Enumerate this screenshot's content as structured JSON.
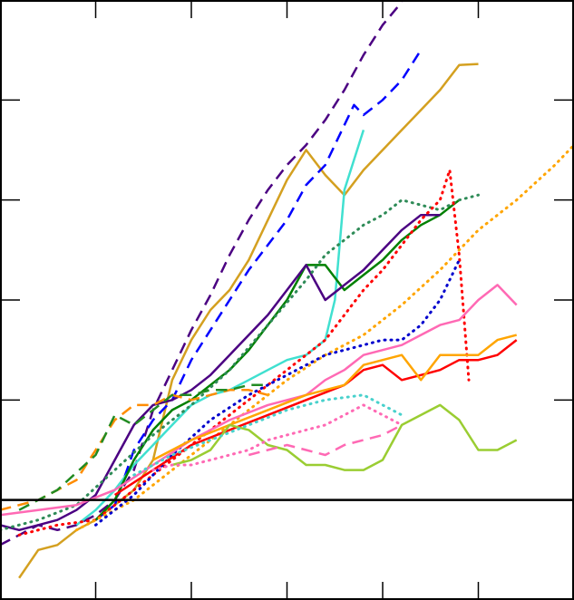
{
  "chart_data": {
    "type": "line",
    "title": "",
    "xlabel": "",
    "ylabel": "",
    "xlim": [
      0,
      6
    ],
    "ylim": [
      -1,
      5
    ],
    "grid": false,
    "legend": "none",
    "x_ticks": [
      1,
      2,
      3,
      4,
      5
    ],
    "y_ticks": [
      -1,
      0,
      1,
      2,
      3,
      4
    ],
    "reference_line_y": 0,
    "series": [
      {
        "color": "#D4A020",
        "dash": "solid",
        "width": 2.5,
        "x": [
          0.2,
          0.4,
          0.6,
          0.8,
          1.0,
          1.2,
          1.4,
          1.6,
          1.8,
          2.0,
          2.2,
          2.4,
          2.6,
          2.8,
          3.0,
          3.2,
          3.4,
          3.6,
          3.8,
          4.0,
          4.2,
          4.4,
          4.6,
          4.8,
          5.0
        ],
        "y": [
          -0.78,
          -0.5,
          -0.45,
          -0.3,
          -0.2,
          -0.05,
          0.1,
          0.4,
          1.2,
          1.6,
          1.9,
          2.1,
          2.4,
          2.8,
          3.2,
          3.5,
          3.25,
          3.05,
          3.3,
          3.5,
          3.7,
          3.9,
          4.1,
          4.35,
          4.36
        ]
      },
      {
        "color": "#4B0082",
        "dash": "dash",
        "width": 2.5,
        "x": [
          0.0,
          0.2,
          0.4,
          0.6,
          0.8,
          1.0,
          1.2,
          1.4,
          1.6,
          1.8,
          2.0,
          2.2,
          2.4,
          2.6,
          2.8,
          3.0,
          3.2,
          3.4,
          3.6,
          3.8,
          4.0,
          4.2
        ],
        "y": [
          -0.45,
          -0.35,
          -0.25,
          -0.3,
          -0.25,
          -0.15,
          0.0,
          0.3,
          0.9,
          1.3,
          1.7,
          2.05,
          2.45,
          2.8,
          3.1,
          3.35,
          3.55,
          3.8,
          4.1,
          4.45,
          4.75,
          4.98
        ]
      },
      {
        "color": "#0000FF",
        "dash": "dash",
        "width": 2.5,
        "x": [
          1.0,
          1.2,
          1.4,
          1.6,
          1.8,
          2.0,
          2.2,
          2.4,
          2.6,
          2.8,
          3.0,
          3.2,
          3.4,
          3.6,
          3.7,
          3.8,
          4.0,
          4.2,
          4.4
        ],
        "y": [
          -0.2,
          -0.05,
          0.5,
          0.8,
          1.0,
          1.4,
          1.7,
          2.0,
          2.3,
          2.55,
          2.8,
          3.15,
          3.35,
          3.75,
          3.95,
          3.85,
          4.0,
          4.2,
          4.5
        ]
      },
      {
        "color": "#40E0D0",
        "dash": "solid",
        "width": 2.5,
        "x": [
          0.8,
          1.0,
          1.2,
          1.4,
          1.6,
          1.8,
          2.0,
          2.2,
          2.4,
          2.6,
          2.8,
          3.0,
          3.2,
          3.4,
          3.5,
          3.6,
          3.8
        ],
        "y": [
          -0.25,
          -0.1,
          0.1,
          0.35,
          0.55,
          0.75,
          0.95,
          1.05,
          1.1,
          1.2,
          1.3,
          1.4,
          1.45,
          1.6,
          2.0,
          3.1,
          3.7
        ]
      },
      {
        "color": "#008000",
        "dash": "solid",
        "width": 2.5,
        "x": [
          1.0,
          1.2,
          1.4,
          1.6,
          1.8,
          2.0,
          2.2,
          2.4,
          2.6,
          2.8,
          3.0,
          3.2,
          3.4,
          3.6,
          3.8,
          4.0,
          4.2,
          4.4,
          4.6,
          4.8
        ],
        "y": [
          -0.2,
          0.0,
          0.4,
          0.7,
          0.9,
          1.0,
          1.15,
          1.3,
          1.5,
          1.75,
          2.0,
          2.35,
          2.35,
          2.1,
          2.25,
          2.4,
          2.6,
          2.75,
          2.85,
          3.0
        ]
      },
      {
        "color": "#4B0082",
        "dash": "solid",
        "width": 2.5,
        "x": [
          0.0,
          0.2,
          0.4,
          0.6,
          0.8,
          1.0,
          1.2,
          1.4,
          1.6,
          1.8,
          2.0,
          2.2,
          2.4,
          2.6,
          2.8,
          3.0,
          3.2,
          3.4,
          3.6,
          3.8,
          4.0,
          4.2,
          4.4,
          4.6
        ],
        "y": [
          -0.25,
          -0.3,
          -0.25,
          -0.2,
          -0.1,
          0.05,
          0.4,
          0.75,
          0.95,
          1.0,
          1.1,
          1.25,
          1.45,
          1.65,
          1.85,
          2.1,
          2.35,
          2.0,
          2.15,
          2.3,
          2.5,
          2.7,
          2.85,
          2.85
        ]
      },
      {
        "color": "#2E8B57",
        "dash": "dot",
        "width": 3,
        "x": [
          0.0,
          0.4,
          0.8,
          1.2,
          1.6,
          2.0,
          2.4,
          2.8,
          3.2,
          3.4,
          3.6,
          3.8,
          4.0,
          4.2,
          4.4,
          4.6,
          4.8,
          5.0
        ],
        "y": [
          -0.3,
          -0.2,
          -0.05,
          0.3,
          0.65,
          0.95,
          1.3,
          1.75,
          2.2,
          2.45,
          2.6,
          2.75,
          2.85,
          3.0,
          2.95,
          2.9,
          3.0,
          3.05
        ]
      },
      {
        "color": "#FF0000",
        "dash": "dot",
        "width": 3,
        "x": [
          0.2,
          0.6,
          1.0,
          1.4,
          1.8,
          2.2,
          2.6,
          3.0,
          3.4,
          3.6,
          3.8,
          4.0,
          4.2,
          4.4,
          4.6,
          4.7,
          4.8,
          4.9
        ],
        "y": [
          -0.35,
          -0.25,
          -0.2,
          0.1,
          0.4,
          0.7,
          1.0,
          1.3,
          1.6,
          1.85,
          2.1,
          2.3,
          2.55,
          2.8,
          3.0,
          3.3,
          2.45,
          1.2
        ]
      },
      {
        "color": "#FF8C00",
        "dash": "dash",
        "width": 2.5,
        "x": [
          0.0,
          0.4,
          0.8,
          1.0,
          1.2,
          1.4,
          1.6,
          1.8,
          2.0,
          2.2,
          2.4,
          2.6,
          2.8
        ],
        "y": [
          -0.1,
          0.0,
          0.2,
          0.5,
          0.8,
          0.95,
          0.95,
          1.05,
          1.0,
          1.05,
          1.1,
          1.1,
          1.05
        ]
      },
      {
        "color": "#228B22",
        "dash": "dash",
        "width": 2.5,
        "x": [
          0.2,
          0.6,
          1.0,
          1.2,
          1.4,
          1.6,
          1.8,
          2.0,
          2.2,
          2.4,
          2.6,
          2.8
        ],
        "y": [
          -0.1,
          0.1,
          0.45,
          0.85,
          0.75,
          0.9,
          1.05,
          1.05,
          1.1,
          1.1,
          1.15,
          1.15
        ]
      },
      {
        "color": "#FFA500",
        "dash": "dot",
        "width": 3,
        "x": [
          0.8,
          1.0,
          1.4,
          1.8,
          2.2,
          2.6,
          3.0,
          3.4,
          3.8,
          4.2,
          4.6,
          5.0,
          5.4,
          5.8,
          6.0
        ],
        "y": [
          -0.3,
          -0.2,
          0.0,
          0.3,
          0.6,
          0.9,
          1.2,
          1.45,
          1.65,
          1.95,
          2.3,
          2.7,
          3.0,
          3.35,
          3.55
        ]
      },
      {
        "color": "#0000CD",
        "dash": "dot",
        "width": 3,
        "x": [
          1.0,
          1.4,
          1.8,
          2.2,
          2.6,
          3.0,
          3.4,
          3.6,
          3.8,
          4.0,
          4.2,
          4.4,
          4.6,
          4.8
        ],
        "y": [
          -0.25,
          0.05,
          0.45,
          0.8,
          1.05,
          1.25,
          1.45,
          1.5,
          1.55,
          1.6,
          1.6,
          1.75,
          2.0,
          2.4
        ]
      },
      {
        "color": "#FF69B4",
        "dash": "solid",
        "width": 2.5,
        "x": [
          0.0,
          0.4,
          0.8,
          1.2,
          1.6,
          2.0,
          2.4,
          2.8,
          3.2,
          3.4,
          3.6,
          3.8,
          4.0,
          4.2,
          4.4,
          4.6,
          4.8,
          5.0,
          5.2,
          5.4
        ],
        "y": [
          -0.15,
          -0.1,
          -0.05,
          0.1,
          0.35,
          0.6,
          0.8,
          0.95,
          1.05,
          1.2,
          1.3,
          1.45,
          1.5,
          1.55,
          1.65,
          1.75,
          1.8,
          2.0,
          2.15,
          1.95
        ]
      },
      {
        "color": "#FF0000",
        "dash": "solid",
        "width": 2.5,
        "x": [
          1.2,
          1.6,
          2.0,
          2.4,
          2.8,
          3.2,
          3.6,
          3.8,
          4.0,
          4.2,
          4.4,
          4.6,
          4.8,
          5.0,
          5.2,
          5.4
        ],
        "y": [
          0.05,
          0.3,
          0.55,
          0.7,
          0.85,
          1.0,
          1.15,
          1.3,
          1.35,
          1.2,
          1.25,
          1.3,
          1.4,
          1.4,
          1.45,
          1.6
        ]
      },
      {
        "color": "#FFA500",
        "dash": "solid",
        "width": 2.5,
        "x": [
          1.6,
          2.0,
          2.4,
          2.8,
          3.2,
          3.6,
          3.8,
          4.0,
          4.2,
          4.4,
          4.6,
          4.8,
          5.0,
          5.2,
          5.4
        ],
        "y": [
          0.4,
          0.6,
          0.75,
          0.9,
          1.05,
          1.15,
          1.35,
          1.4,
          1.45,
          1.2,
          1.45,
          1.45,
          1.45,
          1.6,
          1.65
        ]
      },
      {
        "color": "#9ACD32",
        "dash": "solid",
        "width": 2.5,
        "x": [
          1.8,
          2.0,
          2.2,
          2.4,
          2.6,
          2.8,
          3.0,
          3.2,
          3.4,
          3.6,
          3.8,
          4.0,
          4.2,
          4.4,
          4.6,
          4.8,
          5.0,
          5.2,
          5.4
        ],
        "y": [
          0.35,
          0.4,
          0.5,
          0.75,
          0.7,
          0.55,
          0.5,
          0.35,
          0.35,
          0.3,
          0.3,
          0.4,
          0.75,
          0.85,
          0.95,
          0.8,
          0.5,
          0.5,
          0.6
        ]
      },
      {
        "color": "#48D1CC",
        "dash": "dot",
        "width": 3,
        "x": [
          1.4,
          1.8,
          2.2,
          2.6,
          3.0,
          3.4,
          3.8,
          4.2
        ],
        "y": [
          0.25,
          0.45,
          0.6,
          0.75,
          0.9,
          1.0,
          1.05,
          0.85
        ]
      },
      {
        "color": "#FF69B4",
        "dash": "dot",
        "width": 3,
        "x": [
          1.6,
          1.8,
          2.0,
          2.2,
          2.4,
          2.6,
          2.8,
          3.0,
          3.2,
          3.4,
          3.6,
          3.8,
          4.0,
          4.2
        ],
        "y": [
          0.3,
          0.35,
          0.35,
          0.4,
          0.45,
          0.5,
          0.6,
          0.65,
          0.7,
          0.75,
          0.85,
          0.95,
          0.85,
          0.75
        ]
      },
      {
        "color": "#FF69B4",
        "dash": "dash",
        "width": 2.5,
        "x": [
          2.6,
          2.8,
          3.0,
          3.2,
          3.4,
          3.6,
          3.8,
          4.0,
          4.2
        ],
        "y": [
          0.45,
          0.5,
          0.55,
          0.5,
          0.45,
          0.55,
          0.6,
          0.65,
          0.75
        ]
      }
    ]
  }
}
